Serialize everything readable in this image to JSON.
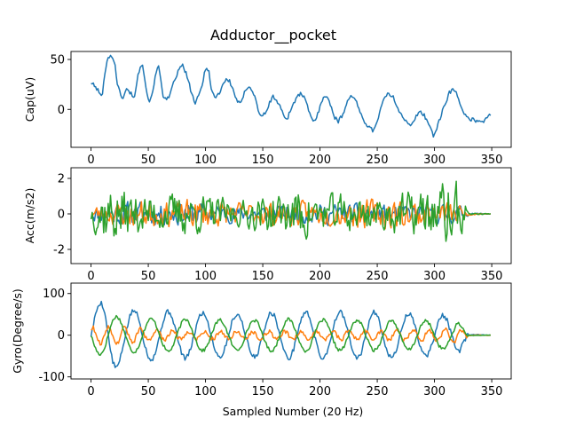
{
  "chart_data": {
    "type": "line",
    "title": "Adductor__pocket",
    "xlabel": "Sampled Number (20 Hz)",
    "x_range": [
      0,
      349
    ],
    "xlim": [
      -17.5,
      367
    ],
    "xticks": [
      0,
      50,
      100,
      150,
      200,
      250,
      300,
      350
    ],
    "colors": [
      "#1f77b4",
      "#ff7f0e",
      "#2ca02c"
    ],
    "subplots": [
      {
        "id": "cap",
        "ylabel": "Cap(uV)",
        "ylim": [
          -38,
          58
        ],
        "yticks": [
          0,
          50
        ],
        "series": [
          {
            "color": "#1f77b4",
            "anchors": [
              [
                0,
                27
              ],
              [
                4,
                22
              ],
              [
                7,
                18
              ],
              [
                8,
                14
              ],
              [
                10,
                15
              ],
              [
                12,
                36
              ],
              [
                14,
                50
              ],
              [
                16,
                53
              ],
              [
                19,
                52
              ],
              [
                21,
                45
              ],
              [
                23,
                25
              ],
              [
                26,
                14
              ],
              [
                28,
                12
              ],
              [
                31,
                20
              ],
              [
                35,
                16
              ],
              [
                38,
                12
              ],
              [
                40,
                28
              ],
              [
                43,
                44
              ],
              [
                45,
                46
              ],
              [
                48,
                22
              ],
              [
                50,
                10
              ],
              [
                52,
                9
              ],
              [
                54,
                20
              ],
              [
                57,
                37
              ],
              [
                59,
                43
              ],
              [
                61,
                30
              ],
              [
                63,
                14
              ],
              [
                66,
                9
              ],
              [
                69,
                14
              ],
              [
                72,
                26
              ],
              [
                75,
                35
              ],
              [
                78,
                42
              ],
              [
                80,
                44
              ],
              [
                83,
                36
              ],
              [
                86,
                24
              ],
              [
                89,
                12
              ],
              [
                91,
                6
              ],
              [
                94,
                13
              ],
              [
                97,
                24
              ],
              [
                99,
                36
              ],
              [
                101,
                43
              ],
              [
                103,
                38
              ],
              [
                105,
                20
              ],
              [
                108,
                12
              ],
              [
                112,
                16
              ],
              [
                115,
                25
              ],
              [
                118,
                30
              ],
              [
                121,
                28
              ],
              [
                124,
                20
              ],
              [
                127,
                10
              ],
              [
                130,
                5
              ],
              [
                132,
                9
              ],
              [
                135,
                20
              ],
              [
                138,
                24
              ],
              [
                141,
                18
              ],
              [
                144,
                10
              ],
              [
                146,
                -2
              ],
              [
                149,
                -6
              ],
              [
                153,
                -4
              ],
              [
                156,
                7
              ],
              [
                159,
                13
              ],
              [
                162,
                9
              ],
              [
                165,
                3
              ],
              [
                168,
                -5
              ],
              [
                171,
                -10
              ],
              [
                174,
                -2
              ],
              [
                177,
                7
              ],
              [
                180,
                12
              ],
              [
                183,
                16
              ],
              [
                186,
                12
              ],
              [
                189,
                3
              ],
              [
                192,
                -8
              ],
              [
                195,
                -12
              ],
              [
                198,
                -5
              ],
              [
                201,
                8
              ],
              [
                204,
                14
              ],
              [
                207,
                10
              ],
              [
                210,
                2
              ],
              [
                213,
                -8
              ],
              [
                216,
                -12
              ],
              [
                219,
                -7
              ],
              [
                222,
                2
              ],
              [
                225,
                11
              ],
              [
                228,
                14
              ],
              [
                231,
                9
              ],
              [
                234,
                0
              ],
              [
                237,
                -8
              ],
              [
                240,
                -14
              ],
              [
                243,
                -18
              ],
              [
                246,
                -21
              ],
              [
                249,
                -15
              ],
              [
                252,
                -3
              ],
              [
                255,
                8
              ],
              [
                258,
                14
              ],
              [
                261,
                15
              ],
              [
                264,
                12
              ],
              [
                267,
                4
              ],
              [
                270,
                -3
              ],
              [
                273,
                -8
              ],
              [
                276,
                -14
              ],
              [
                279,
                -17
              ],
              [
                282,
                -12
              ],
              [
                285,
                -5
              ],
              [
                288,
                -2
              ],
              [
                291,
                -6
              ],
              [
                294,
                -12
              ],
              [
                297,
                -20
              ],
              [
                299,
                -26
              ],
              [
                301,
                -22
              ],
              [
                304,
                -12
              ],
              [
                307,
                -2
              ],
              [
                310,
                8
              ],
              [
                313,
                17
              ],
              [
                316,
                20
              ],
              [
                319,
                16
              ],
              [
                322,
                8
              ],
              [
                325,
                -2
              ],
              [
                328,
                -8
              ],
              [
                331,
                -12
              ],
              [
                334,
                -9
              ],
              [
                337,
                -12
              ],
              [
                340,
                -11
              ],
              [
                343,
                -12
              ],
              [
                346,
                -8
              ],
              [
                349,
                -5
              ]
            ],
            "noise": 2
          }
        ]
      },
      {
        "id": "acc",
        "ylabel": "Acc(m/s2)",
        "ylim": [
          -2.8,
          2.6
        ],
        "yticks": [
          -2,
          0,
          2
        ],
        "series": [
          {
            "color": "#1f77b4",
            "amp_profile": [
              [
                0,
                0.35
              ],
              [
                20,
                0.55
              ],
              [
                40,
                0.6
              ],
              [
                60,
                0.5
              ],
              [
                90,
                0.6
              ],
              [
                130,
                0.35
              ],
              [
                170,
                0.45
              ],
              [
                210,
                0.5
              ],
              [
                250,
                0.45
              ],
              [
                290,
                0.45
              ],
              [
                320,
                0.5
              ],
              [
                330,
                0.05
              ],
              [
                349,
                0.02
              ]
            ],
            "seed": 11
          },
          {
            "color": "#ff7f0e",
            "amp_profile": [
              [
                0,
                0.4
              ],
              [
                20,
                0.55
              ],
              [
                40,
                0.7
              ],
              [
                60,
                0.6
              ],
              [
                90,
                0.7
              ],
              [
                130,
                0.55
              ],
              [
                170,
                0.6
              ],
              [
                210,
                0.55
              ],
              [
                250,
                0.75
              ],
              [
                290,
                0.7
              ],
              [
                320,
                0.55
              ],
              [
                330,
                0.06
              ],
              [
                349,
                0.02
              ]
            ],
            "seed": 23
          },
          {
            "color": "#2ca02c",
            "amp_profile": [
              [
                0,
                0.6
              ],
              [
                10,
                1.4
              ],
              [
                20,
                1.5
              ],
              [
                30,
                1.2
              ],
              [
                40,
                1.0
              ],
              [
                60,
                0.8
              ],
              [
                80,
                1.1
              ],
              [
                100,
                0.9
              ],
              [
                130,
                0.6
              ],
              [
                150,
                0.9
              ],
              [
                170,
                1.0
              ],
              [
                185,
                1.4
              ],
              [
                200,
                0.8
              ],
              [
                220,
                1.0
              ],
              [
                250,
                0.8
              ],
              [
                270,
                1.0
              ],
              [
                300,
                1.2
              ],
              [
                315,
                1.9
              ],
              [
                325,
                0.9
              ],
              [
                330,
                0.06
              ],
              [
                349,
                0.02
              ]
            ],
            "seed": 37
          }
        ]
      },
      {
        "id": "gyro",
        "ylabel": "Gyro(Degree/s)",
        "ylim": [
          -105,
          125
        ],
        "yticks": [
          -100,
          0,
          100
        ],
        "series": [
          {
            "color": "#1f77b4",
            "osc": {
              "period": 30,
              "phase": 0.0
            },
            "amp_profile": [
              [
                0,
                55
              ],
              [
                14,
                95
              ],
              [
                30,
                60
              ],
              [
                80,
                55
              ],
              [
                130,
                50
              ],
              [
                170,
                55
              ],
              [
                210,
                55
              ],
              [
                250,
                55
              ],
              [
                290,
                50
              ],
              [
                320,
                45
              ],
              [
                330,
                2
              ],
              [
                349,
                0
              ]
            ],
            "noise": 6,
            "seed": 5
          },
          {
            "color": "#ff7f0e",
            "osc": {
              "period": 14,
              "phase": 1.0
            },
            "amp_profile": [
              [
                0,
                18
              ],
              [
                20,
                22
              ],
              [
                60,
                12
              ],
              [
                100,
                8
              ],
              [
                150,
                8
              ],
              [
                200,
                9
              ],
              [
                250,
                10
              ],
              [
                300,
                14
              ],
              [
                320,
                20
              ],
              [
                330,
                1
              ],
              [
                349,
                0
              ]
            ],
            "noise": 5,
            "seed": 9
          },
          {
            "color": "#2ca02c",
            "osc": {
              "period": 30,
              "phase": 3.14159
            },
            "amp_profile": [
              [
                0,
                40
              ],
              [
                14,
                50
              ],
              [
                30,
                40
              ],
              [
                80,
                38
              ],
              [
                130,
                35
              ],
              [
                170,
                38
              ],
              [
                210,
                36
              ],
              [
                250,
                36
              ],
              [
                290,
                34
              ],
              [
                320,
                32
              ],
              [
                330,
                1
              ],
              [
                349,
                0
              ]
            ],
            "noise": 4,
            "seed": 17
          }
        ]
      }
    ]
  }
}
